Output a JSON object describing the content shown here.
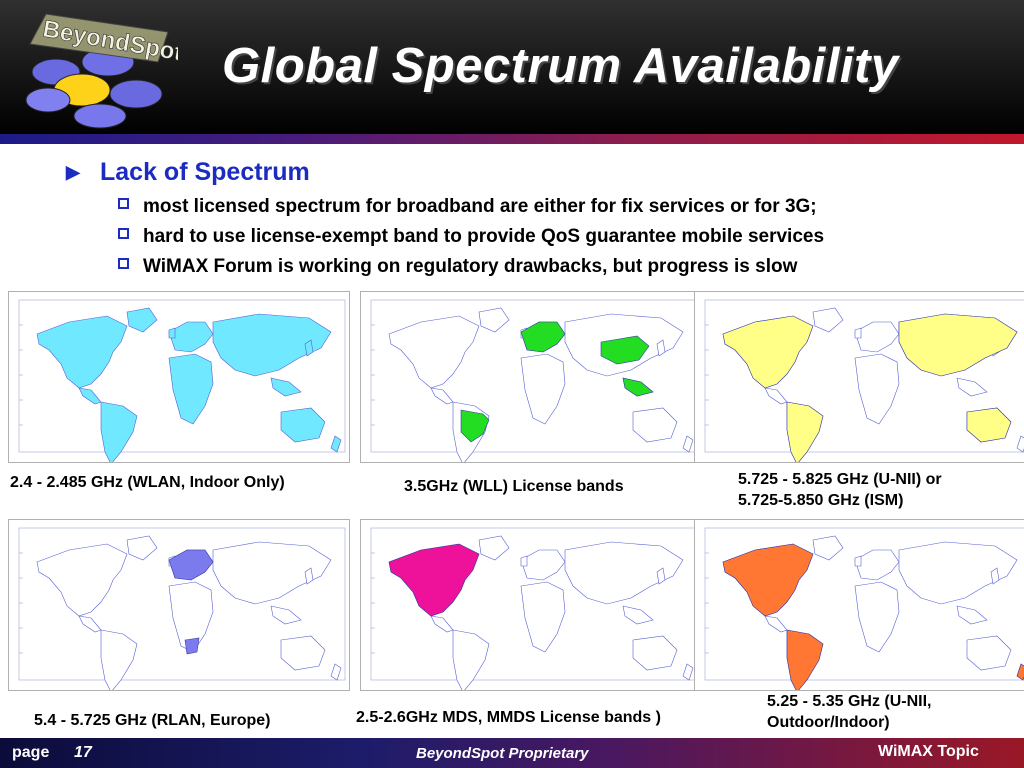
{
  "header": {
    "title": "Global Spectrum Availability",
    "logo_text": "BeyondSpot"
  },
  "bullets": {
    "main": "Lack of Spectrum",
    "subs": [
      "most licensed spectrum for broadband are either for fix services or for 3G;",
      "hard to use license-exempt band to provide QoS guarantee mobile services",
      "WiMAX Forum is working on regulatory drawbacks, but progress is slow"
    ]
  },
  "maps": [
    {
      "caption": "2.4 - 2.485 GHz (WLAN, Indoor Only)",
      "color": "#70e8ff",
      "regions": [
        "global"
      ]
    },
    {
      "caption": "3.5GHz (WLL) License bands",
      "color": "#22dd22",
      "regions": [
        "europe",
        "brazil",
        "china",
        "southeast-asia"
      ]
    },
    {
      "caption": "5.725 - 5.825 GHz (U-NII) or\n5.725-5.850 GHz (ISM)",
      "color": "#ffff88",
      "regions": [
        "north-america",
        "south-america",
        "asia",
        "australia"
      ]
    },
    {
      "caption": "5.4 - 5.725 GHz (RLAN, Europe)",
      "color": "#7b7bee",
      "regions": [
        "europe",
        "south-africa"
      ]
    },
    {
      "caption": "2.5-2.6GHz MDS, MMDS License bands )",
      "color": "#ee1199",
      "regions": [
        "north-america"
      ]
    },
    {
      "caption": "5.25 - 5.35 GHz (U-NII,\nOutdoor/Indoor)",
      "color": "#ff7733",
      "regions": [
        "north-america",
        "south-america",
        "new-zealand"
      ]
    }
  ],
  "footer": {
    "page_label": "page",
    "page_number": "17",
    "proprietary": "BeyondSpot Proprietary",
    "topic": "WiMAX Topic"
  },
  "colors": {
    "accent_blue": "#1c2bc0"
  }
}
